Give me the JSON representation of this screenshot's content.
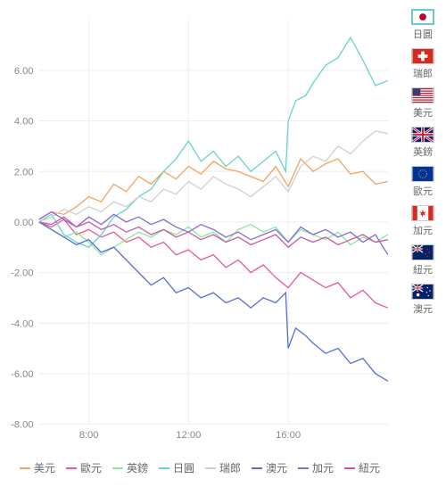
{
  "chart": {
    "type": "line",
    "ylim": [
      -8,
      8
    ],
    "yticks": [
      -8.0,
      -6.0,
      -4.0,
      -2.0,
      0.0,
      2.0,
      4.0,
      6.0
    ],
    "ytick_labels": [
      "-8.00",
      "-6.00",
      "-4.00",
      "-2.00",
      "0.00",
      "2.00",
      "4.00",
      "6.00"
    ],
    "xlim": [
      6,
      20
    ],
    "xticks": [
      8,
      12,
      16
    ],
    "xtick_labels": [
      "8:00",
      "12:00",
      "16:00"
    ],
    "grid_color": "#eeeeee",
    "axis_color": "#cccccc",
    "text_color": "#888888",
    "background_color": "#ffffff",
    "label_fontsize": 11,
    "series": [
      {
        "id": "usd",
        "name": "美元",
        "color": "#f5a35c",
        "data": [
          [
            6,
            0.1
          ],
          [
            6.5,
            0.4
          ],
          [
            7,
            0.3
          ],
          [
            7.5,
            0.6
          ],
          [
            8,
            1.0
          ],
          [
            8.5,
            0.8
          ],
          [
            9,
            1.5
          ],
          [
            9.5,
            1.2
          ],
          [
            10,
            1.8
          ],
          [
            10.5,
            1.5
          ],
          [
            11,
            2.0
          ],
          [
            11.5,
            1.7
          ],
          [
            12,
            2.2
          ],
          [
            12.5,
            1.9
          ],
          [
            13,
            2.4
          ],
          [
            13.5,
            2.1
          ],
          [
            14,
            2.0
          ],
          [
            14.5,
            1.8
          ],
          [
            15,
            1.6
          ],
          [
            15.5,
            2.2
          ],
          [
            16,
            1.4
          ],
          [
            16.5,
            2.5
          ],
          [
            17,
            2.0
          ],
          [
            17.5,
            2.3
          ],
          [
            18,
            2.5
          ],
          [
            18.5,
            1.9
          ],
          [
            19,
            2.0
          ],
          [
            19.5,
            1.5
          ],
          [
            20,
            1.6
          ]
        ]
      },
      {
        "id": "eur",
        "name": "歐元",
        "color": "#e85a9e",
        "data": [
          [
            6,
            0.0
          ],
          [
            6.5,
            -0.2
          ],
          [
            7,
            0.1
          ],
          [
            7.5,
            -0.5
          ],
          [
            8,
            -0.3
          ],
          [
            8.5,
            -0.6
          ],
          [
            9,
            -0.4
          ],
          [
            9.5,
            -0.8
          ],
          [
            10,
            -0.6
          ],
          [
            10.5,
            -1.0
          ],
          [
            11,
            -0.8
          ],
          [
            11.5,
            -1.3
          ],
          [
            12,
            -1.1
          ],
          [
            12.5,
            -1.5
          ],
          [
            13,
            -1.3
          ],
          [
            13.5,
            -1.8
          ],
          [
            14,
            -1.5
          ],
          [
            14.5,
            -2.0
          ],
          [
            15,
            -1.7
          ],
          [
            15.5,
            -2.2
          ],
          [
            16,
            -2.6
          ],
          [
            16.5,
            -2.0
          ],
          [
            17,
            -2.3
          ],
          [
            17.5,
            -2.6
          ],
          [
            18,
            -2.4
          ],
          [
            18.5,
            -3.0
          ],
          [
            19,
            -2.7
          ],
          [
            19.5,
            -3.2
          ],
          [
            20,
            -3.4
          ]
        ]
      },
      {
        "id": "gbp",
        "name": "英鎊",
        "color": "#8de89a",
        "data": [
          [
            6,
            0.0
          ],
          [
            6.5,
            -0.3
          ],
          [
            7,
            -0.6
          ],
          [
            7.5,
            -0.4
          ],
          [
            8,
            -0.8
          ],
          [
            8.5,
            -1.3
          ],
          [
            9,
            -1.0
          ],
          [
            9.5,
            -0.7
          ],
          [
            10,
            -0.4
          ],
          [
            10.5,
            -0.6
          ],
          [
            11,
            -0.3
          ],
          [
            11.5,
            -0.5
          ],
          [
            12,
            -0.2
          ],
          [
            12.5,
            -0.6
          ],
          [
            13,
            -0.4
          ],
          [
            13.5,
            -0.8
          ],
          [
            14,
            -0.3
          ],
          [
            14.5,
            -0.1
          ],
          [
            15,
            -0.4
          ],
          [
            15.5,
            -0.2
          ],
          [
            16,
            -0.8
          ],
          [
            16.5,
            -0.3
          ],
          [
            17,
            -0.5
          ],
          [
            17.5,
            -0.7
          ],
          [
            18,
            -0.4
          ],
          [
            18.5,
            -0.9
          ],
          [
            19,
            -0.6
          ],
          [
            19.5,
            -0.8
          ],
          [
            20,
            -0.5
          ]
        ]
      },
      {
        "id": "jpy",
        "name": "日圓",
        "color": "#69d4c8",
        "data": [
          [
            6,
            0.0
          ],
          [
            6.5,
            0.3
          ],
          [
            7,
            -0.5
          ],
          [
            7.5,
            -0.8
          ],
          [
            8,
            -1.0
          ],
          [
            8.5,
            -0.5
          ],
          [
            9,
            0.2
          ],
          [
            9.5,
            0.5
          ],
          [
            10,
            1.0
          ],
          [
            10.5,
            1.3
          ],
          [
            11,
            2.0
          ],
          [
            11.5,
            2.5
          ],
          [
            12,
            3.2
          ],
          [
            12.5,
            2.4
          ],
          [
            13,
            2.8
          ],
          [
            13.5,
            2.2
          ],
          [
            14,
            2.6
          ],
          [
            14.5,
            2.0
          ],
          [
            15,
            2.4
          ],
          [
            15.5,
            2.8
          ],
          [
            15.9,
            2.0
          ],
          [
            16,
            4.0
          ],
          [
            16.3,
            4.8
          ],
          [
            16.7,
            5.0
          ],
          [
            17,
            5.5
          ],
          [
            17.5,
            6.2
          ],
          [
            18,
            6.5
          ],
          [
            18.5,
            7.3
          ],
          [
            19,
            6.4
          ],
          [
            19.5,
            5.4
          ],
          [
            20,
            5.6
          ]
        ]
      },
      {
        "id": "chf",
        "name": "瑞郎",
        "color": "#d0d0d0",
        "data": [
          [
            6,
            0.0
          ],
          [
            6.5,
            0.2
          ],
          [
            7,
            0.5
          ],
          [
            7.5,
            0.3
          ],
          [
            8,
            0.6
          ],
          [
            8.5,
            0.4
          ],
          [
            9,
            0.8
          ],
          [
            9.5,
            0.6
          ],
          [
            10,
            1.0
          ],
          [
            10.5,
            0.8
          ],
          [
            11,
            1.3
          ],
          [
            11.5,
            1.1
          ],
          [
            12,
            1.6
          ],
          [
            12.5,
            1.3
          ],
          [
            13,
            1.8
          ],
          [
            13.5,
            1.5
          ],
          [
            14,
            1.3
          ],
          [
            14.5,
            1.0
          ],
          [
            15,
            1.4
          ],
          [
            15.5,
            1.8
          ],
          [
            16,
            1.2
          ],
          [
            16.5,
            2.2
          ],
          [
            17,
            2.6
          ],
          [
            17.5,
            2.4
          ],
          [
            18,
            3.0
          ],
          [
            18.5,
            2.7
          ],
          [
            19,
            3.2
          ],
          [
            19.5,
            3.6
          ],
          [
            20,
            3.5
          ]
        ]
      },
      {
        "id": "aud",
        "name": "澳元",
        "color": "#5a6fd4",
        "data": [
          [
            6,
            0.0
          ],
          [
            6.5,
            -0.3
          ],
          [
            7,
            -0.6
          ],
          [
            7.5,
            -0.9
          ],
          [
            8,
            -0.7
          ],
          [
            8.5,
            -1.2
          ],
          [
            9,
            -1.0
          ],
          [
            9.5,
            -1.5
          ],
          [
            10,
            -2.0
          ],
          [
            10.5,
            -2.5
          ],
          [
            11,
            -2.2
          ],
          [
            11.5,
            -2.8
          ],
          [
            12,
            -2.6
          ],
          [
            12.5,
            -3.0
          ],
          [
            13,
            -2.8
          ],
          [
            13.5,
            -3.2
          ],
          [
            14,
            -3.0
          ],
          [
            14.5,
            -3.4
          ],
          [
            15,
            -3.0
          ],
          [
            15.5,
            -3.2
          ],
          [
            15.9,
            -2.8
          ],
          [
            16,
            -5.0
          ],
          [
            16.3,
            -4.2
          ],
          [
            16.7,
            -4.5
          ],
          [
            17,
            -4.8
          ],
          [
            17.5,
            -5.2
          ],
          [
            18,
            -5.0
          ],
          [
            18.5,
            -5.6
          ],
          [
            19,
            -5.4
          ],
          [
            19.5,
            -6.0
          ],
          [
            20,
            -6.3
          ]
        ]
      },
      {
        "id": "cad",
        "name": "加元",
        "color": "#8b6ad4",
        "data": [
          [
            6,
            0.1
          ],
          [
            6.5,
            0.4
          ],
          [
            7,
            0.1
          ],
          [
            7.5,
            -0.2
          ],
          [
            8,
            0.2
          ],
          [
            8.5,
            -0.1
          ],
          [
            9,
            0.3
          ],
          [
            9.5,
            0.0
          ],
          [
            10,
            0.2
          ],
          [
            10.5,
            -0.1
          ],
          [
            11,
            0.1
          ],
          [
            11.5,
            -0.2
          ],
          [
            12,
            -0.4
          ],
          [
            12.5,
            -0.1
          ],
          [
            13,
            -0.3
          ],
          [
            13.5,
            -0.6
          ],
          [
            14,
            -0.4
          ],
          [
            14.5,
            -0.7
          ],
          [
            15,
            -0.5
          ],
          [
            15.5,
            -0.3
          ],
          [
            16,
            -0.8
          ],
          [
            16.5,
            -0.2
          ],
          [
            17,
            -0.5
          ],
          [
            17.5,
            -0.3
          ],
          [
            18,
            -0.6
          ],
          [
            18.5,
            -0.4
          ],
          [
            19,
            -0.8
          ],
          [
            19.5,
            -0.5
          ],
          [
            20,
            -1.3
          ]
        ]
      },
      {
        "id": "nzd",
        "name": "紐元",
        "color": "#c95aa8",
        "data": [
          [
            6,
            0.0
          ],
          [
            6.5,
            -0.1
          ],
          [
            7,
            0.2
          ],
          [
            7.5,
            -0.2
          ],
          [
            8,
            0.0
          ],
          [
            8.5,
            -0.3
          ],
          [
            9,
            -0.1
          ],
          [
            9.5,
            -0.4
          ],
          [
            10,
            -0.2
          ],
          [
            10.5,
            -0.5
          ],
          [
            11,
            -0.3
          ],
          [
            11.5,
            -0.6
          ],
          [
            12,
            -0.4
          ],
          [
            12.5,
            -0.7
          ],
          [
            13,
            -0.5
          ],
          [
            13.5,
            -0.8
          ],
          [
            14,
            -0.6
          ],
          [
            14.5,
            -0.9
          ],
          [
            15,
            -0.7
          ],
          [
            15.5,
            -0.5
          ],
          [
            16,
            -1.0
          ],
          [
            16.5,
            -0.6
          ],
          [
            17,
            -0.8
          ],
          [
            17.5,
            -0.6
          ],
          [
            18,
            -0.9
          ],
          [
            18.5,
            -0.7
          ],
          [
            19,
            -0.5
          ],
          [
            19.5,
            -0.8
          ],
          [
            20,
            -0.7
          ]
        ]
      }
    ]
  },
  "side_legend": [
    {
      "id": "jpy",
      "label": "日圓",
      "active": true,
      "flag_svg": "<rect width='26' height='18' fill='#fff'/><circle cx='13' cy='9' r='5' fill='#bc002d'/>"
    },
    {
      "id": "chf",
      "label": "瑞郎",
      "active": false,
      "flag_svg": "<rect width='26' height='18' fill='#d52b1e'/><rect x='11' y='3' width='4' height='12' fill='#fff'/><rect x='7' y='7' width='12' height='4' fill='#fff'/>"
    },
    {
      "id": "usd",
      "label": "美元",
      "active": false,
      "flag_svg": "<rect width='26' height='18' fill='#b22234'/><rect y='1.4' width='26' height='1.4' fill='#fff'/><rect y='4.2' width='26' height='1.4' fill='#fff'/><rect y='7' width='26' height='1.4' fill='#fff'/><rect y='9.8' width='26' height='1.4' fill='#fff'/><rect y='12.6' width='26' height='1.4' fill='#fff'/><rect y='15.4' width='26' height='1.4' fill='#fff'/><rect width='10' height='9' fill='#3c3b6e'/>"
    },
    {
      "id": "gbp",
      "label": "英鎊",
      "active": false,
      "flag_svg": "<rect width='26' height='18' fill='#012169'/><path d='M0,0 L26,18 M26,0 L0,18' stroke='#fff' stroke-width='3'/><path d='M0,0 L26,18 M26,0 L0,18' stroke='#c8102e' stroke-width='1.2'/><rect x='11' width='4' height='18' fill='#fff'/><rect y='7' width='26' height='4' fill='#fff'/><rect x='12' width='2' height='18' fill='#c8102e'/><rect y='8' width='26' height='2' fill='#c8102e'/>"
    },
    {
      "id": "eur",
      "label": "歐元",
      "active": false,
      "flag_svg": "<rect width='26' height='18' fill='#003399'/><circle cx='13' cy='9' r='5' fill='none' stroke='#ffcc00' stroke-width='1' stroke-dasharray='1,1.5'/>"
    },
    {
      "id": "cad",
      "label": "加元",
      "active": false,
      "flag_svg": "<rect width='26' height='18' fill='#fff'/><rect width='6' height='18' fill='#d52b1e'/><rect x='20' width='6' height='18' fill='#d52b1e'/><path d='M13,4 L14,8 L17,7 L15,10 L17,12 L13,11 L13,14 L11,11 L9,12 L11,10 L9,7 L12,8 Z' fill='#d52b1e'/>"
    },
    {
      "id": "nzd",
      "label": "紐元",
      "active": false,
      "flag_svg": "<rect width='26' height='18' fill='#012169'/><rect width='13' height='9' fill='#012169'/><path d='M0,0 L13,9 M13,0 L0,9' stroke='#fff' stroke-width='1.5'/><rect x='5.5' width='2' height='9' fill='#fff'/><rect y='3.5' width='13' height='2' fill='#fff'/><rect x='6' width='1' height='9' fill='#c8102e'/><rect y='4' width='13' height='1' fill='#c8102e'/><circle cx='19' cy='5' r='1' fill='#c8102e'/><circle cx='21' cy='9' r='1' fill='#c8102e'/><circle cx='17' cy='11' r='1' fill='#c8102e'/><circle cx='19' cy='14' r='1' fill='#c8102e'/>"
    },
    {
      "id": "aud",
      "label": "澳元",
      "active": false,
      "flag_svg": "<rect width='26' height='18' fill='#012169'/><path d='M0,0 L13,9 M13,0 L0,9' stroke='#fff' stroke-width='1.5'/><rect x='5.5' width='2' height='9' fill='#fff'/><rect y='3.5' width='13' height='2' fill='#fff'/><rect x='6' width='1' height='9' fill='#c8102e'/><rect y='4' width='13' height='1' fill='#c8102e'/><circle cx='7' cy='13' r='2' fill='#fff'/><circle cx='19' cy='4' r='0.8' fill='#fff'/><circle cx='22' cy='8' r='0.8' fill='#fff'/><circle cx='18' cy='10' r='0.8' fill='#fff'/><circle cx='20' cy='14' r='0.8' fill='#fff'/>"
    }
  ]
}
